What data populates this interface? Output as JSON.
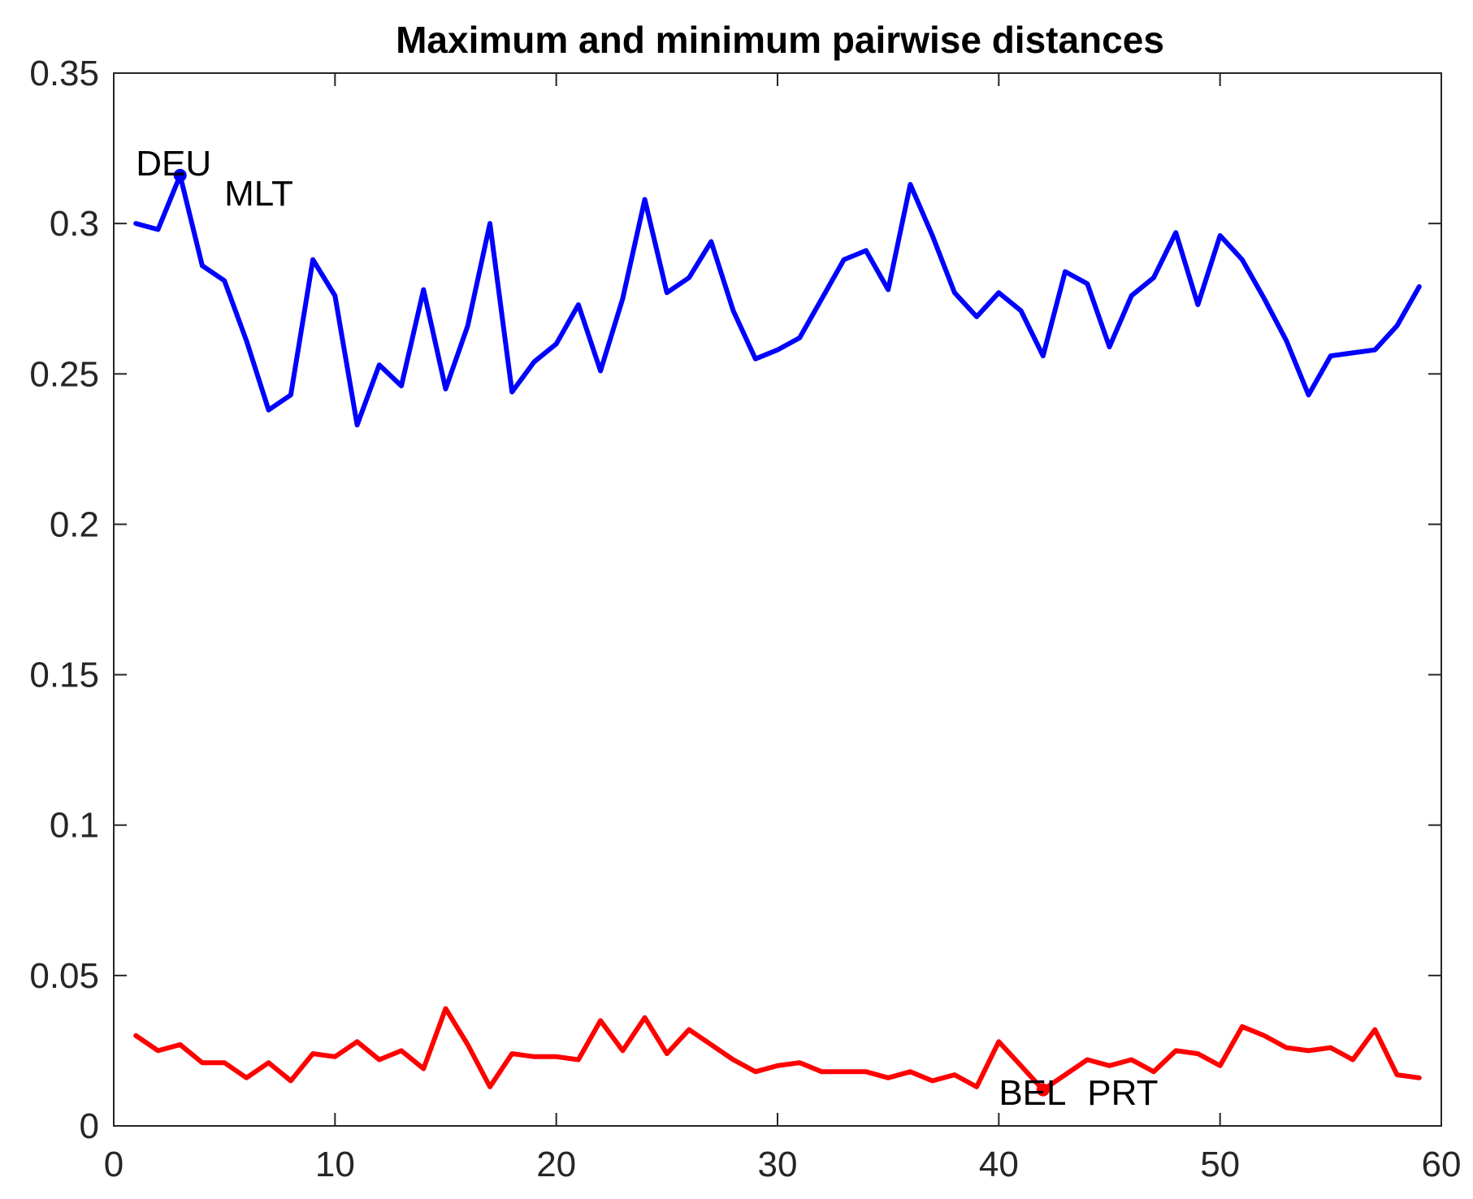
{
  "chart_data": {
    "type": "line",
    "title": "Maximum and minimum pairwise distances",
    "xlabel": "",
    "ylabel": "",
    "xlim": [
      0,
      60
    ],
    "ylim": [
      0,
      0.35
    ],
    "xticks": [
      0,
      10,
      20,
      30,
      40,
      50,
      60
    ],
    "xtick_labels": [
      "0",
      "10",
      "20",
      "30",
      "40",
      "50",
      "60"
    ],
    "yticks": [
      0,
      0.05,
      0.1,
      0.15,
      0.2,
      0.25,
      0.3,
      0.35
    ],
    "ytick_labels": [
      "0",
      "0.05",
      "0.1",
      "0.15",
      "0.2",
      "0.25",
      "0.3",
      "0.35"
    ],
    "grid": false,
    "box": true,
    "x": [
      1,
      2,
      3,
      4,
      5,
      6,
      7,
      8,
      9,
      10,
      11,
      12,
      13,
      14,
      15,
      16,
      17,
      18,
      19,
      20,
      21,
      22,
      23,
      24,
      25,
      26,
      27,
      28,
      29,
      30,
      31,
      32,
      33,
      34,
      35,
      36,
      37,
      38,
      39,
      40,
      41,
      42,
      43,
      44,
      45,
      46,
      47,
      48,
      49,
      50,
      51,
      52,
      53,
      54,
      55,
      56,
      57,
      58,
      59
    ],
    "series": [
      {
        "color": "#0000ff",
        "values": [
          0.3,
          0.298,
          0.316,
          0.286,
          0.281,
          0.261,
          0.238,
          0.243,
          0.288,
          0.276,
          0.233,
          0.253,
          0.246,
          0.278,
          0.245,
          0.266,
          0.3,
          0.244,
          0.254,
          0.26,
          0.273,
          0.251,
          0.275,
          0.308,
          0.277,
          0.282,
          0.294,
          0.271,
          0.255,
          0.258,
          0.262,
          0.275,
          0.288,
          0.291,
          0.278,
          0.313,
          0.296,
          0.277,
          0.269,
          0.277,
          0.271,
          0.256,
          0.284,
          0.28,
          0.259,
          0.276,
          0.282,
          0.297,
          0.273,
          0.296,
          0.288,
          0.275,
          0.261,
          0.243,
          0.256,
          0.257,
          0.258,
          0.266,
          0.279
        ]
      },
      {
        "color": "#ff0000",
        "values": [
          0.03,
          0.025,
          0.027,
          0.021,
          0.021,
          0.016,
          0.021,
          0.015,
          0.024,
          0.023,
          0.028,
          0.022,
          0.025,
          0.019,
          0.039,
          0.027,
          0.013,
          0.024,
          0.023,
          0.023,
          0.022,
          0.035,
          0.025,
          0.036,
          0.024,
          0.032,
          0.027,
          0.022,
          0.018,
          0.02,
          0.021,
          0.018,
          0.018,
          0.018,
          0.016,
          0.018,
          0.015,
          0.017,
          0.013,
          0.028,
          0.02,
          0.012,
          0.017,
          0.022,
          0.02,
          0.022,
          0.018,
          0.025,
          0.024,
          0.02,
          0.033,
          0.03,
          0.026,
          0.025,
          0.026,
          0.022,
          0.032,
          0.017,
          0.016
        ]
      }
    ],
    "markers": [
      {
        "series": 0,
        "x": 3,
        "y": 0.316
      },
      {
        "series": 1,
        "x": 42,
        "y": 0.012
      }
    ],
    "annotations": [
      {
        "text": "DEU",
        "x": 1.0,
        "y": 0.316
      },
      {
        "text": "MLT",
        "x": 5.0,
        "y": 0.306
      },
      {
        "text": "BEL",
        "x": 40.0,
        "y": 0.007
      },
      {
        "text": "PRT",
        "x": 44.0,
        "y": 0.007
      }
    ]
  }
}
